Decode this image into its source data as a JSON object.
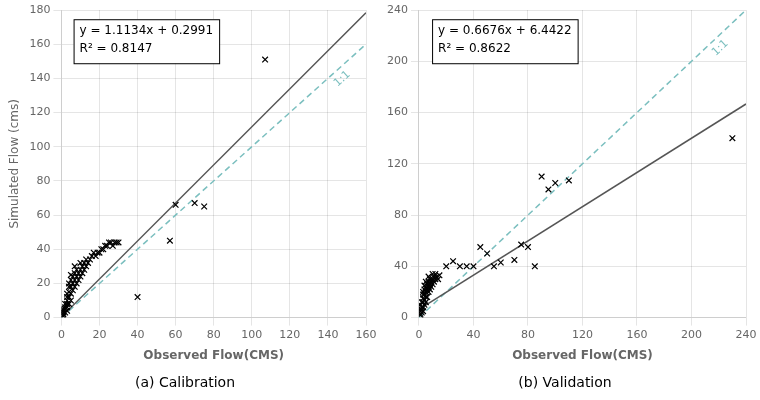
{
  "chart_data": [
    {
      "type": "scatter",
      "title": "(a) Calibration",
      "x_label": "Observed Flow(CMS)",
      "y_label": "Simulated Flow (cms)",
      "annotations": [
        "y = 1.1134x + 0.2991",
        "R² = 0.8147"
      ],
      "xlim": [
        0,
        160
      ],
      "ylim": [
        0,
        180
      ],
      "xticks": [
        0,
        20,
        40,
        60,
        80,
        100,
        120,
        140,
        160
      ],
      "yticks": [
        0,
        20,
        40,
        60,
        80,
        100,
        120,
        140,
        160,
        180
      ],
      "grid": true,
      "series": [
        {
          "name": "1:1",
          "type": "line",
          "line_style": "dashed",
          "color": "#7bbfbf",
          "x": [
            0,
            160
          ],
          "values": [
            0,
            160
          ]
        },
        {
          "type": "line",
          "line_style": "solid",
          "color": "#555555",
          "x": [
            0,
            160
          ],
          "values": [
            0.2991,
            178.4431
          ]
        },
        {
          "type": "scatter",
          "marker": "x",
          "color": "#000000",
          "x": [
            1,
            1,
            1,
            1,
            1,
            2,
            2,
            2,
            2,
            3,
            3,
            3,
            3,
            3,
            3,
            4,
            4,
            4,
            4,
            4,
            5,
            5,
            5,
            5,
            5,
            6,
            6,
            6,
            7,
            7,
            7,
            7,
            8,
            8,
            8,
            9,
            9,
            10,
            10,
            10,
            11,
            11,
            12,
            12,
            13,
            13,
            14,
            15,
            16,
            17,
            18,
            19,
            20,
            21,
            22,
            23,
            24,
            25,
            26,
            27,
            28,
            29,
            30,
            40,
            57,
            60,
            70,
            75,
            107
          ],
          "values": [
            1,
            2,
            3,
            4,
            5,
            3,
            5,
            6,
            8,
            4,
            6,
            8,
            10,
            12,
            14,
            8,
            12,
            15,
            18,
            20,
            10,
            14,
            18,
            22,
            25,
            16,
            20,
            24,
            18,
            22,
            26,
            30,
            20,
            24,
            28,
            22,
            26,
            24,
            28,
            32,
            26,
            30,
            28,
            32,
            30,
            34,
            32,
            34,
            36,
            38,
            36,
            38,
            38,
            40,
            40,
            42,
            42,
            44,
            44,
            42,
            44,
            44,
            44,
            12,
            45,
            66,
            67,
            65,
            151
          ]
        }
      ]
    },
    {
      "type": "scatter",
      "title": "(b) Validation",
      "x_label": "Observed Flow(CMS)",
      "annotations": [
        "y = 0.6676x + 6.4422",
        "R² = 0.8622"
      ],
      "xlim": [
        0,
        240
      ],
      "ylim": [
        0,
        240
      ],
      "xticks": [
        0,
        40,
        80,
        120,
        160,
        200,
        240
      ],
      "yticks": [
        0,
        40,
        80,
        120,
        160,
        200,
        240
      ],
      "grid": true,
      "series": [
        {
          "name": "1:1",
          "type": "line",
          "line_style": "dashed",
          "color": "#7bbfbf",
          "x": [
            0,
            240
          ],
          "values": [
            0,
            240
          ]
        },
        {
          "type": "line",
          "line_style": "solid",
          "color": "#555555",
          "x": [
            0,
            240
          ],
          "values": [
            6.4422,
            166.6662
          ]
        },
        {
          "type": "scatter",
          "marker": "x",
          "color": "#000000",
          "x": [
            1,
            1,
            1,
            1,
            1,
            2,
            2,
            2,
            2,
            3,
            3,
            3,
            3,
            3,
            3,
            4,
            4,
            4,
            4,
            4,
            5,
            5,
            5,
            5,
            5,
            6,
            6,
            6,
            7,
            7,
            7,
            7,
            8,
            8,
            8,
            9,
            9,
            10,
            10,
            10,
            11,
            11,
            12,
            12,
            13,
            14,
            15,
            20,
            25,
            30,
            35,
            40,
            45,
            50,
            55,
            60,
            70,
            75,
            80,
            85,
            90,
            95,
            100,
            110,
            230
          ],
          "values": [
            2,
            3,
            5,
            7,
            10,
            4,
            6,
            8,
            12,
            5,
            8,
            12,
            15,
            18,
            20,
            10,
            14,
            18,
            22,
            25,
            12,
            16,
            20,
            24,
            28,
            16,
            22,
            26,
            20,
            24,
            28,
            32,
            22,
            26,
            30,
            24,
            28,
            26,
            30,
            34,
            28,
            32,
            30,
            34,
            32,
            30,
            33,
            40,
            44,
            40,
            40,
            40,
            55,
            50,
            40,
            43,
            45,
            57,
            55,
            40,
            110,
            100,
            105,
            107,
            140
          ]
        }
      ]
    }
  ]
}
